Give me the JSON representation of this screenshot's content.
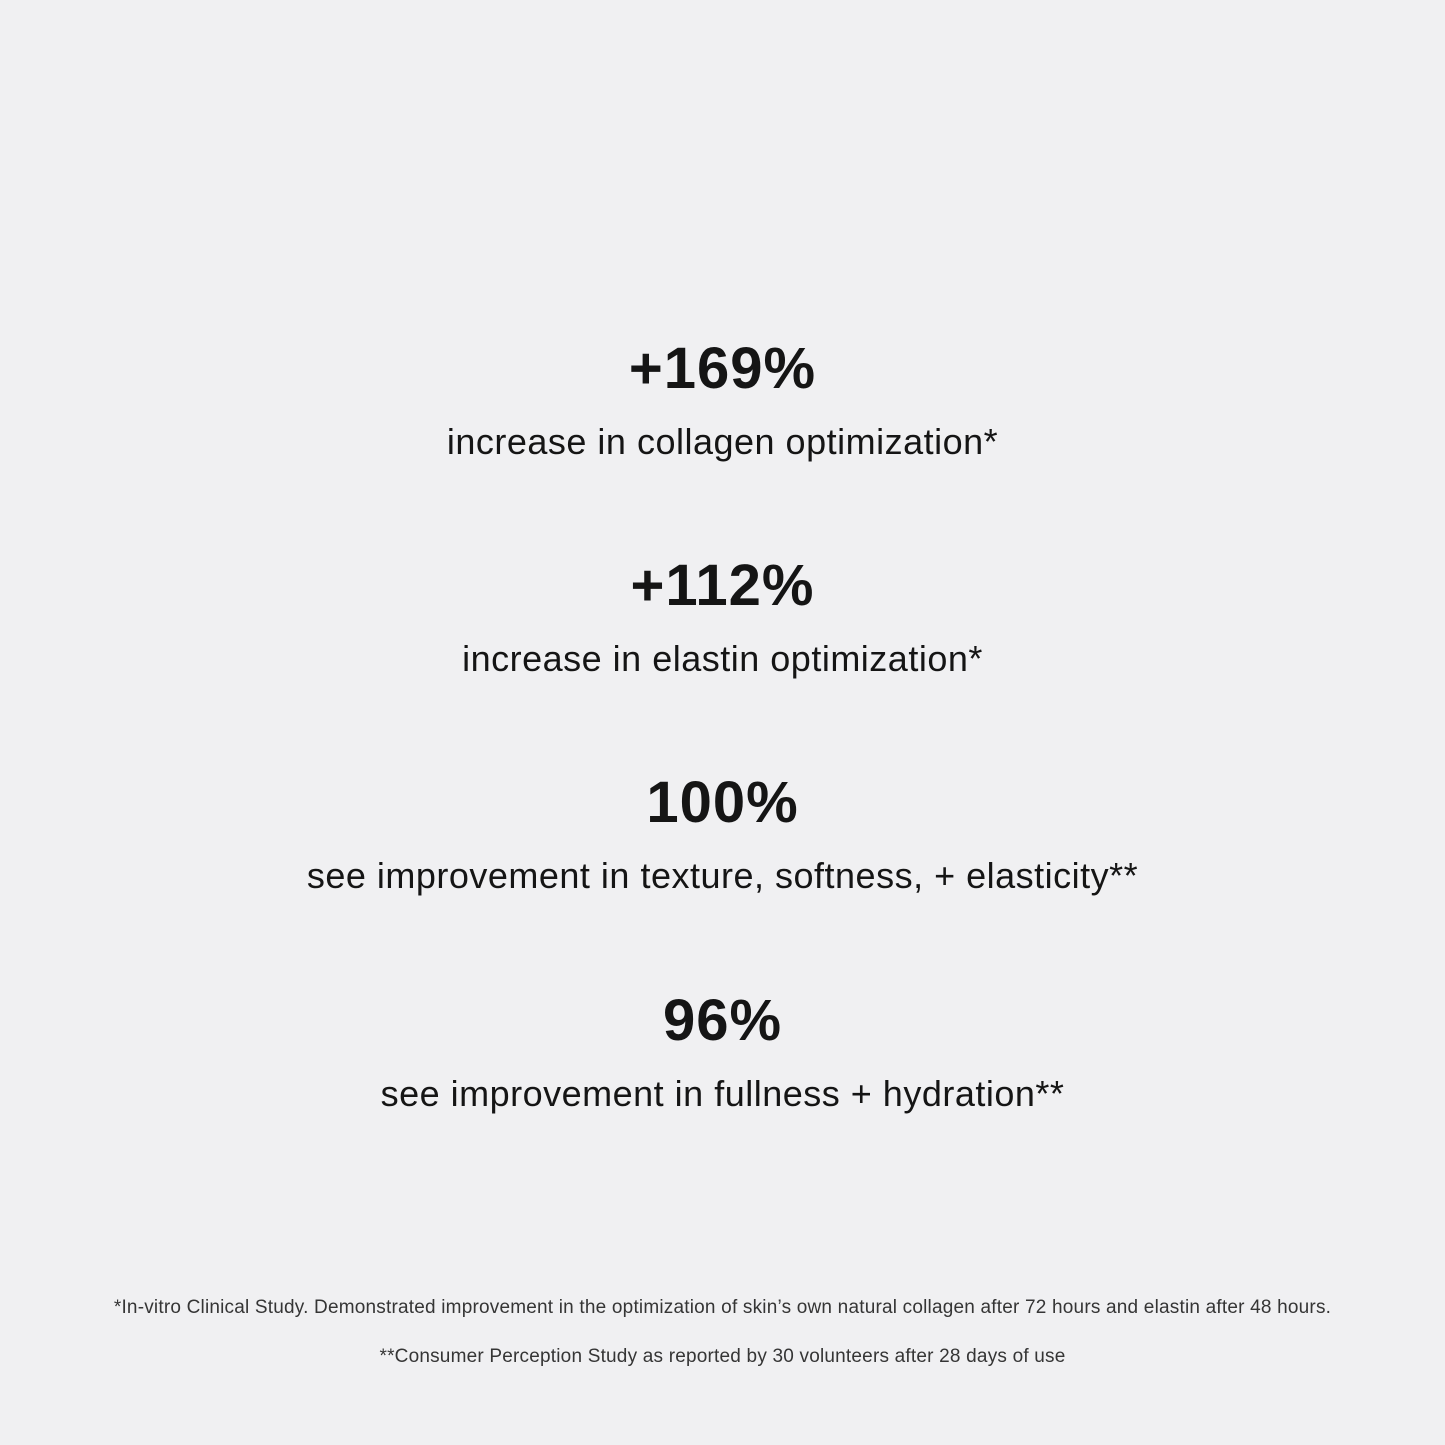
{
  "colors": {
    "background": "#f0f0f2",
    "text": "#151515",
    "footnote-text": "#353535"
  },
  "stats": [
    {
      "value": "+169%",
      "label": "increase in collagen optimization*"
    },
    {
      "value": "+112%",
      "label": "increase in elastin optimization*"
    },
    {
      "value": "100%",
      "label": "see improvement in texture, softness, + elasticity**"
    },
    {
      "value": "96%",
      "label": "see improvement in fullness + hydration**"
    }
  ],
  "footnotes": [
    "*In-vitro Clinical Study. Demonstrated improvement in the optimization of skin’s own natural collagen after 72 hours and elastin after 48 hours.",
    "**Consumer Perception Study as reported by 30 volunteers after 28 days of use"
  ]
}
